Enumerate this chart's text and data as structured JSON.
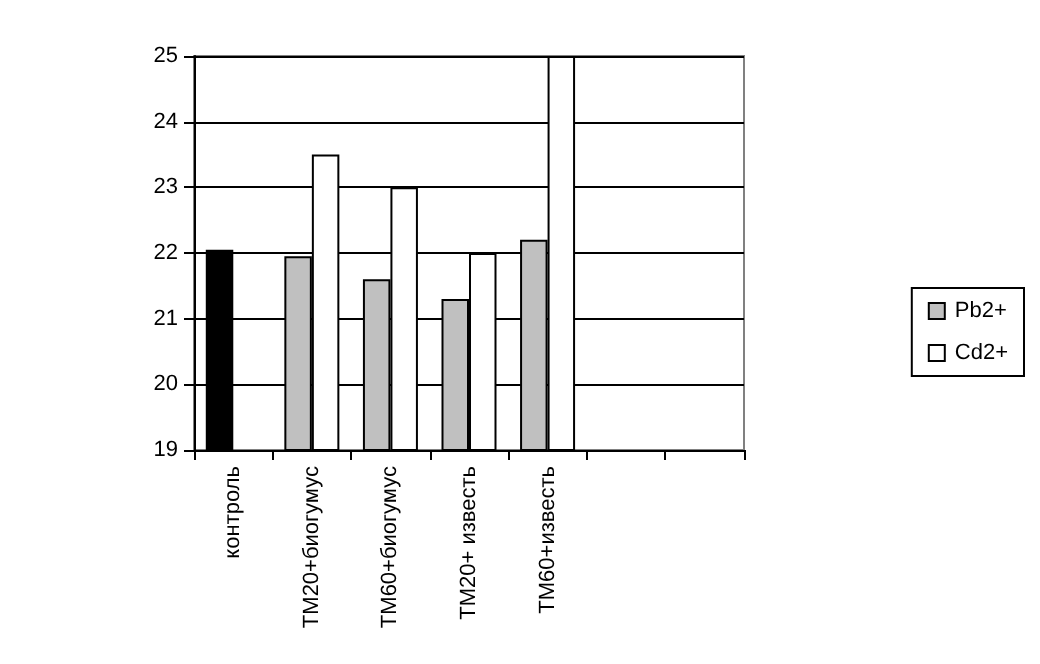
{
  "chart_data": {
    "type": "bar",
    "categories": [
      "контроль",
      "ТМ20+биогумус",
      "ТМ60+биогумус",
      "ТМ20+ известь",
      "ТМ60+известь",
      null,
      null
    ],
    "series": [
      {
        "name": "Pb2+",
        "color": "#c0c0c0",
        "colors": [
          "#000000",
          "#c0c0c0",
          "#c0c0c0",
          "#c0c0c0",
          "#c0c0c0",
          null,
          null
        ],
        "values": [
          22.05,
          21.95,
          21.6,
          21.3,
          22.2,
          null,
          null
        ]
      },
      {
        "name": "Cd2+",
        "color": "#ffffff",
        "values": [
          null,
          23.5,
          23.0,
          22.0,
          25.0,
          null,
          null
        ]
      }
    ],
    "ylim": [
      19,
      25
    ],
    "yticks": [
      19,
      20,
      21,
      22,
      23,
      24,
      25
    ],
    "grid": "y",
    "legend": "right"
  }
}
